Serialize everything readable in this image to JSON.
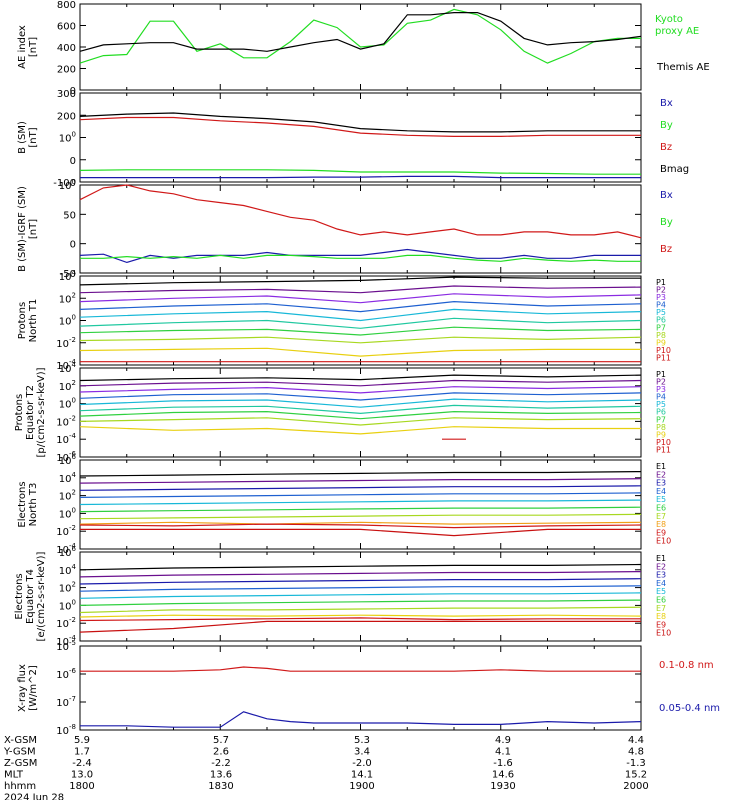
{
  "colors": {
    "black": "#000000",
    "green": "#22dd22",
    "blue": "#1a1aaa",
    "red": "#d01818",
    "purple": "#6a0f8e",
    "violet": "#8a2be2",
    "p4": "#1e60d0",
    "cyan": "#18b8d8",
    "teal": "#20c8a0",
    "lgreen": "#30d040",
    "ygreen": "#a8d820",
    "yellow": "#e8d010",
    "orange": "#f0a018",
    "darkred": "#c81010"
  },
  "chart_data": [
    {
      "type": "line",
      "ylabel": "AE index\n[nT]",
      "ylim": [
        0,
        800
      ],
      "yticks": [
        "0",
        "200",
        "400",
        "600",
        "800"
      ],
      "legend": [
        "Kyoto\nproxy AE",
        "Themis AE"
      ],
      "x": [
        0,
        5,
        10,
        15,
        20,
        25,
        30,
        35,
        40,
        45,
        50,
        55,
        60,
        65,
        70,
        75,
        80,
        85,
        90,
        95,
        100,
        105,
        110,
        115,
        120
      ],
      "series": [
        {
          "name": "Kyoto proxy AE",
          "values": [
            250,
            320,
            330,
            640,
            640,
            360,
            430,
            300,
            300,
            450,
            650,
            580,
            400,
            420,
            620,
            650,
            750,
            700,
            560,
            360,
            250,
            340,
            450,
            480,
            480
          ]
        },
        {
          "name": "Themis AE",
          "values": [
            360,
            420,
            430,
            440,
            440,
            380,
            380,
            380,
            360,
            400,
            440,
            470,
            380,
            430,
            700,
            700,
            720,
            720,
            640,
            480,
            420,
            440,
            450,
            470,
            500
          ]
        }
      ]
    },
    {
      "type": "line",
      "ylabel": "B (SM)\n[nT]",
      "ylim": [
        -100,
        300
      ],
      "yticks": [
        "-100",
        "0",
        "100",
        "200",
        "300"
      ],
      "legend": [
        "Bx",
        "By",
        "Bz",
        "Bmag"
      ],
      "x": [
        0,
        10,
        20,
        30,
        40,
        50,
        60,
        70,
        80,
        90,
        100,
        110,
        120
      ],
      "series": [
        {
          "name": "Bx",
          "values": [
            -80,
            -80,
            -80,
            -80,
            -80,
            -78,
            -78,
            -75,
            -75,
            -80,
            -80,
            -80,
            -80
          ]
        },
        {
          "name": "By",
          "values": [
            -48,
            -45,
            -45,
            -45,
            -45,
            -48,
            -55,
            -55,
            -55,
            -60,
            -62,
            -65,
            -65
          ]
        },
        {
          "name": "Bz",
          "values": [
            180,
            190,
            190,
            175,
            165,
            150,
            120,
            110,
            105,
            105,
            110,
            110,
            110
          ]
        },
        {
          "name": "Bmag",
          "values": [
            195,
            205,
            210,
            195,
            185,
            170,
            140,
            130,
            125,
            125,
            130,
            130,
            130
          ]
        }
      ]
    },
    {
      "type": "line",
      "ylabel": "B (SM)-IGRF (SM)\n[nT]",
      "ylim": [
        -50,
        100
      ],
      "yticks": [
        "-50",
        "0",
        "50",
        "100"
      ],
      "legend": [
        "Bx",
        "By",
        "Bz"
      ],
      "x": [
        0,
        5,
        10,
        15,
        20,
        25,
        30,
        35,
        40,
        45,
        50,
        55,
        60,
        65,
        70,
        75,
        80,
        85,
        90,
        95,
        100,
        105,
        110,
        115,
        120
      ],
      "series": [
        {
          "name": "Bx",
          "values": [
            -20,
            -18,
            -32,
            -20,
            -25,
            -20,
            -20,
            -20,
            -15,
            -20,
            -20,
            -20,
            -20,
            -15,
            -10,
            -15,
            -20,
            -25,
            -25,
            -20,
            -25,
            -25,
            -20,
            -20,
            -20
          ]
        },
        {
          "name": "By",
          "values": [
            -25,
            -25,
            -22,
            -25,
            -22,
            -25,
            -20,
            -25,
            -20,
            -20,
            -22,
            -25,
            -25,
            -25,
            -20,
            -20,
            -25,
            -28,
            -30,
            -25,
            -28,
            -30,
            -28,
            -30,
            -30
          ]
        },
        {
          "name": "Bz",
          "values": [
            75,
            95,
            100,
            90,
            85,
            75,
            70,
            65,
            55,
            45,
            40,
            25,
            15,
            20,
            15,
            20,
            25,
            15,
            15,
            20,
            20,
            15,
            15,
            20,
            10
          ]
        }
      ]
    },
    {
      "type": "line",
      "ylabel": "Protons\nNorth T1",
      "ylim": [
        -4,
        4
      ],
      "yticks": [
        "10-4",
        "10-2",
        "100",
        "102",
        "104"
      ],
      "legend": [
        "P1",
        "P2",
        "P3",
        "P4",
        "P5",
        "P6",
        "P7",
        "P8",
        "P9",
        "P10",
        "P11"
      ],
      "x": [
        0,
        20,
        40,
        60,
        80,
        100,
        120
      ],
      "series": [
        {
          "name": "P1",
          "values": [
            3.2,
            3.4,
            3.5,
            3.6,
            3.9,
            3.8,
            3.8
          ]
        },
        {
          "name": "P2",
          "values": [
            2.5,
            2.7,
            2.8,
            2.5,
            3.1,
            2.9,
            3.0
          ]
        },
        {
          "name": "P3",
          "values": [
            1.7,
            2.0,
            2.2,
            1.6,
            2.4,
            2.1,
            2.3
          ]
        },
        {
          "name": "P4",
          "values": [
            1.0,
            1.3,
            1.5,
            0.8,
            1.7,
            1.3,
            1.5
          ]
        },
        {
          "name": "P5",
          "values": [
            0.3,
            0.6,
            0.8,
            0.0,
            1.0,
            0.6,
            0.8
          ]
        },
        {
          "name": "P6",
          "values": [
            -0.5,
            -0.2,
            0.0,
            -0.7,
            0.2,
            -0.2,
            0.0
          ]
        },
        {
          "name": "P7",
          "values": [
            -1.1,
            -0.9,
            -0.8,
            -1.3,
            -0.6,
            -0.9,
            -0.8
          ]
        },
        {
          "name": "P8",
          "values": [
            -1.8,
            -1.7,
            -1.5,
            -2.0,
            -1.5,
            -1.7,
            -1.5
          ]
        },
        {
          "name": "P9",
          "values": [
            -2.7,
            -2.6,
            -2.5,
            -3.2,
            -2.7,
            -2.6,
            -2.6
          ]
        },
        {
          "name": "P10",
          "values": [
            -3.7,
            -3.7,
            -3.7,
            -3.7,
            -3.7,
            -3.7,
            -3.7
          ]
        }
      ]
    },
    {
      "type": "line",
      "ylabel": "Protons\nEquator T2\n[p/(cm2-s-sr-keV)]",
      "ylim": [
        -6,
        4
      ],
      "yticks": [
        "10-6",
        "10-4",
        "10-2",
        "100",
        "102",
        "104"
      ],
      "legend": [
        "P1",
        "P2",
        "P3",
        "P4",
        "P5",
        "P6",
        "P7",
        "P8",
        "P9",
        "P10",
        "P11"
      ],
      "x": [
        0,
        20,
        40,
        60,
        80,
        100,
        120
      ],
      "series": [
        {
          "name": "P1",
          "values": [
            2.6,
            2.8,
            2.9,
            2.7,
            3.2,
            3.0,
            3.2
          ]
        },
        {
          "name": "P2",
          "values": [
            2.0,
            2.3,
            2.4,
            2.0,
            2.6,
            2.4,
            2.6
          ]
        },
        {
          "name": "P3",
          "values": [
            1.3,
            1.6,
            1.8,
            1.2,
            1.9,
            1.7,
            1.9
          ]
        },
        {
          "name": "P4",
          "values": [
            0.6,
            1.0,
            1.1,
            0.4,
            1.2,
            1.0,
            1.2
          ]
        },
        {
          "name": "P5",
          "values": [
            -0.1,
            0.3,
            0.4,
            -0.4,
            0.5,
            0.2,
            0.4
          ]
        },
        {
          "name": "P6",
          "values": [
            -0.8,
            -0.4,
            -0.3,
            -1.1,
            -0.2,
            -0.5,
            -0.3
          ]
        },
        {
          "name": "P7",
          "values": [
            -1.4,
            -1.0,
            -0.9,
            -1.7,
            -0.9,
            -1.1,
            -1.0
          ]
        },
        {
          "name": "P8",
          "values": [
            -2.0,
            -1.8,
            -1.6,
            -2.4,
            -1.6,
            -1.8,
            -1.7
          ]
        },
        {
          "name": "P9",
          "values": [
            -2.6,
            -3.0,
            -2.8,
            -3.4,
            -2.6,
            -2.8,
            -2.8
          ]
        },
        {
          "name": "P10",
          "values": [
            null,
            null,
            null,
            null,
            -4.0,
            null,
            null
          ]
        }
      ]
    },
    {
      "type": "line",
      "ylabel": "Electrons\nNorth T3",
      "ylim": [
        -4,
        6
      ],
      "yticks": [
        "10-4",
        "10-2",
        "100",
        "102",
        "104",
        "106"
      ],
      "legend": [
        "E1",
        "E2",
        "E3",
        "E4",
        "E5",
        "E6",
        "E7",
        "E8",
        "E9",
        "E10"
      ],
      "x": [
        0,
        20,
        40,
        60,
        80,
        100,
        120
      ],
      "series": [
        {
          "name": "E1",
          "values": [
            4.2,
            4.3,
            4.4,
            4.5,
            4.6,
            4.6,
            4.7
          ]
        },
        {
          "name": "E2",
          "values": [
            3.4,
            3.5,
            3.6,
            3.7,
            3.8,
            3.8,
            3.9
          ]
        },
        {
          "name": "E3",
          "values": [
            2.6,
            2.7,
            2.8,
            2.9,
            3.0,
            3.0,
            3.1
          ]
        },
        {
          "name": "E4",
          "values": [
            1.8,
            1.9,
            2.0,
            2.1,
            2.2,
            2.2,
            2.3
          ]
        },
        {
          "name": "E5",
          "values": [
            1.0,
            1.1,
            1.2,
            1.3,
            1.4,
            1.4,
            1.5
          ]
        },
        {
          "name": "E6",
          "values": [
            0.2,
            0.3,
            0.4,
            0.5,
            0.6,
            0.6,
            0.7
          ]
        },
        {
          "name": "E7",
          "values": [
            -0.6,
            -0.5,
            -0.4,
            -0.3,
            -0.2,
            -0.2,
            -0.1
          ]
        },
        {
          "name": "E8",
          "values": [
            -1.2,
            -1.0,
            -1.2,
            -1.0,
            -1.2,
            -1.1,
            -1.0
          ]
        },
        {
          "name": "E9",
          "values": [
            -1.3,
            -1.4,
            -1.2,
            -1.3,
            -1.6,
            -1.4,
            -1.3
          ]
        },
        {
          "name": "E10",
          "values": [
            -1.8,
            -1.8,
            -1.8,
            -1.8,
            -2.5,
            -1.8,
            -1.8
          ]
        }
      ]
    },
    {
      "type": "line",
      "ylabel": "Electrons\nEquator T4\n[e/(cm2-s-sr-keV)]",
      "ylim": [
        -4,
        6
      ],
      "yticks": [
        "10-4",
        "10-2",
        "100",
        "102",
        "104",
        "106"
      ],
      "legend": [
        "E1",
        "E2",
        "E3",
        "E4",
        "E5",
        "E6",
        "E7",
        "E8",
        "E9",
        "E10"
      ],
      "x": [
        0,
        20,
        40,
        60,
        80,
        100,
        120
      ],
      "series": [
        {
          "name": "E1",
          "values": [
            4.0,
            4.2,
            4.3,
            4.4,
            4.5,
            4.5,
            4.6
          ]
        },
        {
          "name": "E2",
          "values": [
            3.2,
            3.4,
            3.5,
            3.6,
            3.7,
            3.7,
            3.8
          ]
        },
        {
          "name": "E3",
          "values": [
            2.4,
            2.6,
            2.7,
            2.8,
            2.9,
            2.9,
            3.0
          ]
        },
        {
          "name": "E4",
          "values": [
            1.6,
            1.8,
            1.9,
            2.0,
            2.1,
            2.1,
            2.2
          ]
        },
        {
          "name": "E5",
          "values": [
            0.8,
            1.0,
            1.1,
            1.2,
            1.3,
            1.3,
            1.4
          ]
        },
        {
          "name": "E6",
          "values": [
            0.0,
            0.2,
            0.3,
            0.4,
            0.5,
            0.5,
            0.6
          ]
        },
        {
          "name": "E7",
          "values": [
            -0.8,
            -0.5,
            -0.5,
            -0.4,
            -0.3,
            -0.3,
            -0.2
          ]
        },
        {
          "name": "E8",
          "values": [
            -1.3,
            -1.1,
            -1.2,
            -1.1,
            -1.2,
            -1.1,
            -1.2
          ]
        },
        {
          "name": "E9",
          "values": [
            -1.7,
            -1.6,
            -1.5,
            -1.4,
            -1.6,
            -1.5,
            -1.5
          ]
        },
        {
          "name": "E10",
          "values": [
            -3.0,
            -2.6,
            -1.8,
            -1.8,
            -1.8,
            -1.8,
            -1.8
          ]
        }
      ]
    },
    {
      "type": "line",
      "ylabel": "X-ray flux\n[W/m^2]",
      "ylim": [
        -8,
        -5
      ],
      "yticks": [
        "10-8",
        "10-7",
        "10-6",
        "10-5"
      ],
      "legend": [
        "0.1-0.8 nm",
        "0.05-0.4 nm"
      ],
      "x": [
        0,
        10,
        20,
        30,
        35,
        40,
        45,
        50,
        60,
        70,
        80,
        90,
        100,
        110,
        120
      ],
      "series": [
        {
          "name": "0.1-0.8 nm",
          "values": [
            -5.9,
            -5.9,
            -5.9,
            -5.85,
            -5.75,
            -5.8,
            -5.9,
            -5.9,
            -5.9,
            -5.9,
            -5.9,
            -5.85,
            -5.9,
            -5.9,
            -5.9
          ]
        },
        {
          "name": "0.05-0.4 nm",
          "values": [
            -7.85,
            -7.85,
            -7.9,
            -7.9,
            -7.35,
            -7.6,
            -7.7,
            -7.75,
            -7.75,
            -7.75,
            -7.8,
            -7.8,
            -7.7,
            -7.75,
            -7.7
          ]
        }
      ]
    }
  ],
  "xaxis": {
    "rows": [
      {
        "label": "X-GSM",
        "values": [
          "5.9",
          "5.7",
          "5.3",
          "4.9",
          "4.4"
        ]
      },
      {
        "label": "Y-GSM",
        "values": [
          "1.7",
          "2.6",
          "3.4",
          "4.1",
          "4.8"
        ]
      },
      {
        "label": "Z-GSM",
        "values": [
          "-2.4",
          "-2.2",
          "-2.0",
          "-1.6",
          "-1.3"
        ]
      },
      {
        "label": "MLT",
        "values": [
          "13.0",
          "13.6",
          "14.1",
          "14.6",
          "15.2"
        ]
      },
      {
        "label": "hhmm",
        "values": [
          "1800",
          "1830",
          "1900",
          "1930",
          "2000"
        ]
      }
    ],
    "date": "2024 Jun 28"
  }
}
